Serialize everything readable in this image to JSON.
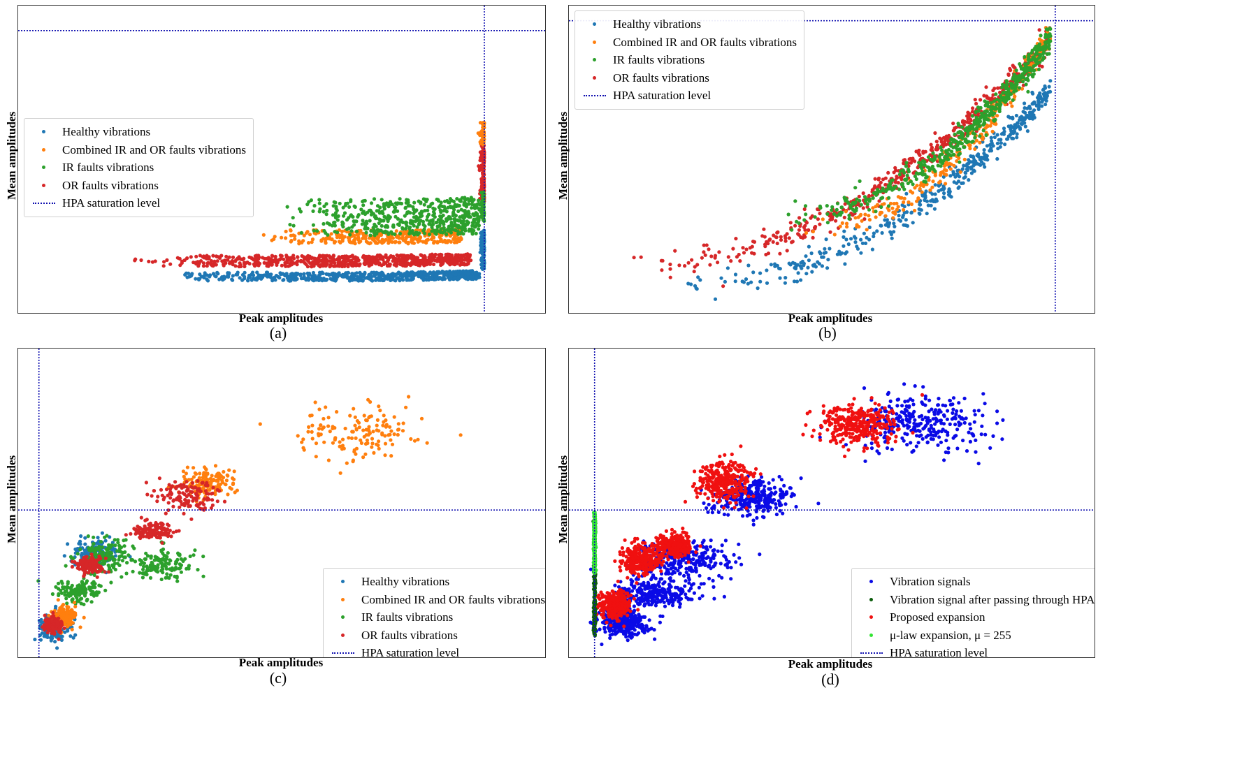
{
  "colors": {
    "healthy": "#1f77b4",
    "combined": "#ff7f0e",
    "ir": "#2ca02c",
    "or": "#d62728",
    "hpa": "#1010b0",
    "vib": "#0a0ae6",
    "after": "#0b5c0b",
    "proposed": "#f01010",
    "mulaw": "#33e433"
  },
  "chart_data": [
    {
      "type": "scatter",
      "id": "a",
      "caption": "(a)",
      "xlabel": "Peak amplitudes",
      "ylabel": "Mean amplitudes",
      "xlim": [
        0,
        1.1
      ],
      "ylim": [
        0,
        1
      ],
      "legend_position": "center-left",
      "legend": [
        {
          "label": "Healthy vibrations",
          "kind": "dot",
          "color_key": "healthy"
        },
        {
          "label": "Combined IR and OR faults vibrations",
          "kind": "dot",
          "color_key": "combined"
        },
        {
          "label": "IR faults vibrations",
          "kind": "dot",
          "color_key": "ir"
        },
        {
          "label": "OR faults vibrations",
          "kind": "dot",
          "color_key": "or"
        },
        {
          "label": "HPA saturation level",
          "kind": "dash",
          "color_key": "hpa"
        }
      ],
      "hlines": [
        {
          "y": 0.955,
          "color_key": "hpa"
        }
      ],
      "vlines": [
        {
          "x": 1.0,
          "color_key": "hpa"
        }
      ],
      "series": [
        {
          "name": "Healthy vibrations",
          "color_key": "healthy",
          "count": 600,
          "x": [
            0.3,
            0.99
          ],
          "y": [
            0.07,
            0.1
          ],
          "shape": "flat",
          "sat": {
            "count": 140,
            "y": [
              0.11,
              0.25
            ]
          }
        },
        {
          "name": "OR faults vibrations",
          "color_key": "or",
          "count": 700,
          "x": [
            0.2,
            0.97
          ],
          "y": [
            0.12,
            0.16
          ],
          "shape": "flat",
          "sat": {
            "count": 170,
            "y": [
              0.35,
              0.55
            ]
          }
        },
        {
          "name": "Combined IR and OR faults vibrations",
          "color_key": "combined",
          "count": 320,
          "x": [
            0.5,
            0.95
          ],
          "y": [
            0.2,
            0.25
          ],
          "shape": "flat",
          "sat": {
            "count": 60,
            "y": [
              0.55,
              0.63
            ]
          }
        },
        {
          "name": "IR faults vibrations",
          "color_key": "ir",
          "count": 520,
          "x": [
            0.55,
            0.99
          ],
          "y": [
            0.23,
            0.36
          ],
          "shape": "flat",
          "sat": {
            "count": 60,
            "y": [
              0.28,
              0.4
            ]
          }
        }
      ]
    },
    {
      "type": "scatter",
      "id": "b",
      "caption": "(b)",
      "xlabel": "Peak amplitudes",
      "ylabel": "Mean amplitudes",
      "xlim": [
        0,
        1.05
      ],
      "ylim": [
        0,
        1
      ],
      "legend_position": "top-left",
      "legend": [
        {
          "label": "Healthy vibrations",
          "kind": "dot",
          "color_key": "healthy"
        },
        {
          "label": "Combined IR and OR faults vibrations",
          "kind": "dot",
          "color_key": "combined"
        },
        {
          "label": "IR faults vibrations",
          "kind": "dot",
          "color_key": "ir"
        },
        {
          "label": "OR faults vibrations",
          "kind": "dot",
          "color_key": "or"
        },
        {
          "label": "HPA saturation level",
          "kind": "dash",
          "color_key": "hpa"
        }
      ],
      "hlines": [
        {
          "y": 0.99,
          "color_key": "hpa"
        }
      ],
      "vlines": [
        {
          "x": 1.0,
          "color_key": "hpa"
        }
      ],
      "series": [
        {
          "name": "Healthy vibrations",
          "color_key": "healthy",
          "count": 420,
          "x": [
            0.15,
            0.99
          ],
          "y": [
            0.05,
            0.75
          ],
          "shape": "curve"
        },
        {
          "name": "OR faults vibrations",
          "color_key": "or",
          "count": 520,
          "x": [
            0.05,
            0.99
          ],
          "y": [
            0.12,
            0.92
          ],
          "shape": "curve"
        },
        {
          "name": "Combined IR and OR faults vibrations",
          "color_key": "combined",
          "count": 260,
          "x": [
            0.45,
            0.99
          ],
          "y": [
            0.25,
            0.95
          ],
          "shape": "curve"
        },
        {
          "name": "IR faults vibrations",
          "color_key": "ir",
          "count": 520,
          "x": [
            0.4,
            0.99
          ],
          "y": [
            0.3,
            0.93
          ],
          "shape": "curve"
        }
      ]
    },
    {
      "type": "scatter",
      "id": "c",
      "caption": "(c)",
      "xlabel": "Peak amplitudes",
      "ylabel": "Mean amplitudes",
      "xlim": [
        0,
        1
      ],
      "ylim": [
        0,
        1
      ],
      "legend_position": "bottom-right",
      "legend": [
        {
          "label": "Healthy vibrations",
          "kind": "dot",
          "color_key": "healthy"
        },
        {
          "label": "Combined IR and OR faults vibrations",
          "kind": "dot",
          "color_key": "combined"
        },
        {
          "label": "IR faults vibrations",
          "kind": "dot",
          "color_key": "ir"
        },
        {
          "label": "OR faults vibrations",
          "kind": "dot",
          "color_key": "or"
        },
        {
          "label": "HPA saturation level",
          "kind": "dash",
          "color_key": "hpa"
        }
      ],
      "hlines": [
        {
          "y": 0.475,
          "color_key": "hpa"
        }
      ],
      "vlines": [
        {
          "x": 0.01,
          "color_key": "hpa"
        }
      ],
      "series": [
        {
          "name": "Healthy vibrations",
          "color_key": "healthy",
          "count": 320,
          "clusters": [
            [
              0.04,
              0.06,
              0.03,
              0.05
            ],
            [
              0.12,
              0.32,
              0.05,
              0.06
            ]
          ]
        },
        {
          "name": "IR faults vibrations",
          "color_key": "ir",
          "count": 420,
          "clusters": [
            [
              0.09,
              0.19,
              0.05,
              0.04
            ],
            [
              0.14,
              0.32,
              0.06,
              0.06
            ],
            [
              0.26,
              0.28,
              0.07,
              0.06
            ]
          ]
        },
        {
          "name": "Combined IR and OR faults vibrations",
          "color_key": "combined",
          "count": 430,
          "clusters": [
            [
              0.06,
              0.1,
              0.03,
              0.04
            ],
            [
              0.35,
              0.57,
              0.06,
              0.05
            ],
            [
              0.66,
              0.75,
              0.12,
              0.1
            ]
          ]
        },
        {
          "name": "OR faults vibrations",
          "color_key": "or",
          "count": 520,
          "clusters": [
            [
              0.04,
              0.07,
              0.02,
              0.03
            ],
            [
              0.11,
              0.28,
              0.03,
              0.03
            ],
            [
              0.24,
              0.4,
              0.04,
              0.03
            ],
            [
              0.31,
              0.53,
              0.06,
              0.06
            ]
          ]
        }
      ]
    },
    {
      "type": "scatter",
      "id": "d",
      "caption": "(d)",
      "xlabel": "Peak amplitudes",
      "ylabel": "Mean amplitudes",
      "xlim": [
        0,
        1
      ],
      "ylim": [
        0,
        1
      ],
      "legend_position": "bottom-right",
      "legend": [
        {
          "label": "Vibration signals",
          "kind": "dot",
          "color_key": "vib"
        },
        {
          "label": "Vibration signal after passing through HPA",
          "kind": "dot",
          "color_key": "after"
        },
        {
          "label": "Proposed expansion",
          "kind": "dot",
          "color_key": "proposed"
        },
        {
          "label": "μ-law expansion, μ = 255",
          "kind": "dot",
          "color_key": "mulaw"
        },
        {
          "label": "HPA saturation level",
          "kind": "dash",
          "color_key": "hpa"
        }
      ],
      "hlines": [
        {
          "y": 0.475,
          "color_key": "hpa"
        }
      ],
      "vlines": [
        {
          "x": 0.02,
          "color_key": "hpa"
        }
      ],
      "series": [
        {
          "name": "Vibration signals",
          "color_key": "vib",
          "count": 1500,
          "clusters": [
            [
              0.08,
              0.08,
              0.05,
              0.05
            ],
            [
              0.14,
              0.18,
              0.08,
              0.05
            ],
            [
              0.2,
              0.3,
              0.1,
              0.07
            ],
            [
              0.34,
              0.52,
              0.08,
              0.06
            ],
            [
              0.68,
              0.78,
              0.15,
              0.1
            ]
          ]
        },
        {
          "name": "Proposed expansion",
          "color_key": "proposed",
          "count": 1500,
          "clusters": [
            [
              0.06,
              0.14,
              0.03,
              0.05
            ],
            [
              0.11,
              0.3,
              0.04,
              0.05
            ],
            [
              0.18,
              0.35,
              0.04,
              0.04
            ],
            [
              0.28,
              0.58,
              0.06,
              0.07
            ],
            [
              0.55,
              0.78,
              0.08,
              0.07
            ]
          ]
        },
        {
          "name": "Vibration signal after passing through HPA",
          "color_key": "after",
          "count": 260,
          "line": {
            "x": 0.02,
            "y": [
              0.03,
              0.44
            ]
          }
        },
        {
          "name": "μ-law expansion, μ = 255",
          "color_key": "mulaw",
          "count": 260,
          "line": {
            "x": 0.02,
            "y": [
              0.25,
              0.47
            ]
          }
        }
      ]
    }
  ]
}
